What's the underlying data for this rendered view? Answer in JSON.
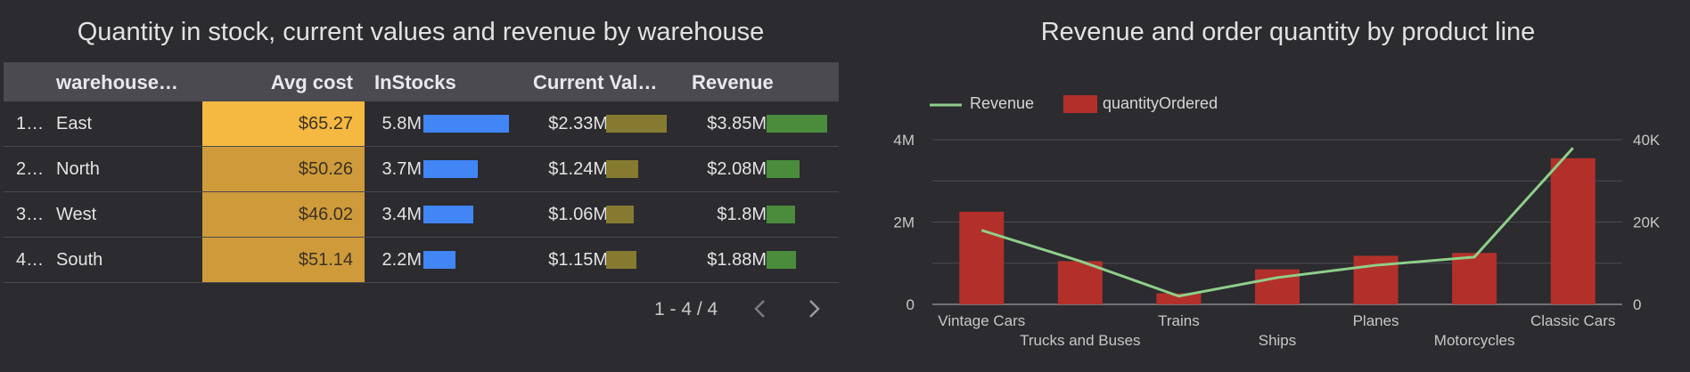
{
  "table": {
    "title": "Quantity in stock, current values and revenue by warehouse",
    "columns": [
      "warehouse…",
      "Avg cost",
      "InStocks",
      "Current Val…",
      "Revenue"
    ],
    "rows": [
      {
        "index": "1…",
        "warehouse": "East",
        "avg_cost": "$65.27",
        "instocks": "5.8M",
        "current_value": "$2.33M",
        "revenue": "$3.85M",
        "avg_cost_num": 65.27,
        "instocks_num": 5.8,
        "current_value_num": 2.33,
        "revenue_num": 3.85
      },
      {
        "index": "2…",
        "warehouse": "North",
        "avg_cost": "$50.26",
        "instocks": "3.7M",
        "current_value": "$1.24M",
        "revenue": "$2.08M",
        "avg_cost_num": 50.26,
        "instocks_num": 3.7,
        "current_value_num": 1.24,
        "revenue_num": 2.08
      },
      {
        "index": "3…",
        "warehouse": "West",
        "avg_cost": "$46.02",
        "instocks": "3.4M",
        "current_value": "$1.06M",
        "revenue": "$1.8M",
        "avg_cost_num": 46.02,
        "instocks_num": 3.4,
        "current_value_num": 1.06,
        "revenue_num": 1.8
      },
      {
        "index": "4…",
        "warehouse": "South",
        "avg_cost": "$51.14",
        "instocks": "2.2M",
        "current_value": "$1.15M",
        "revenue": "$1.88M",
        "avg_cost_num": 51.14,
        "instocks_num": 2.2,
        "current_value_num": 1.15,
        "revenue_num": 1.88
      }
    ],
    "pagination": "1 - 4 / 4",
    "colors": {
      "heat_max": "#f5b840",
      "heat_mid": "#cf9b3a",
      "instocks_bar": "#4285f4",
      "current_value_bar": "#857a30",
      "revenue_bar": "#4a8c3b"
    }
  },
  "chart_data": {
    "type": "bar",
    "title": "Revenue and order quantity by product line",
    "categories": [
      "Vintage Cars",
      "Trucks and Buses",
      "Trains",
      "Ships",
      "Planes",
      "Motorcycles",
      "Classic Cars"
    ],
    "series": [
      {
        "name": "Revenue",
        "type": "line",
        "axis": "left",
        "color": "#8fcf8a",
        "values": [
          1800000,
          1050000,
          200000,
          650000,
          950000,
          1150000,
          3800000
        ]
      },
      {
        "name": "quantityOrdered",
        "type": "bar",
        "axis": "right",
        "color": "#b3302a",
        "values": [
          22500,
          10500,
          2700,
          8500,
          11800,
          12500,
          35500
        ]
      }
    ],
    "left_axis": {
      "ticks": [
        "0",
        "2M",
        "4M"
      ],
      "tick_values": [
        0,
        2000000,
        4000000
      ],
      "max": 4000000
    },
    "right_axis": {
      "ticks": [
        "0",
        "20K",
        "40K"
      ],
      "tick_values": [
        0,
        20000,
        40000
      ],
      "max": 40000
    },
    "legend_position": "top-left",
    "grid": true
  }
}
